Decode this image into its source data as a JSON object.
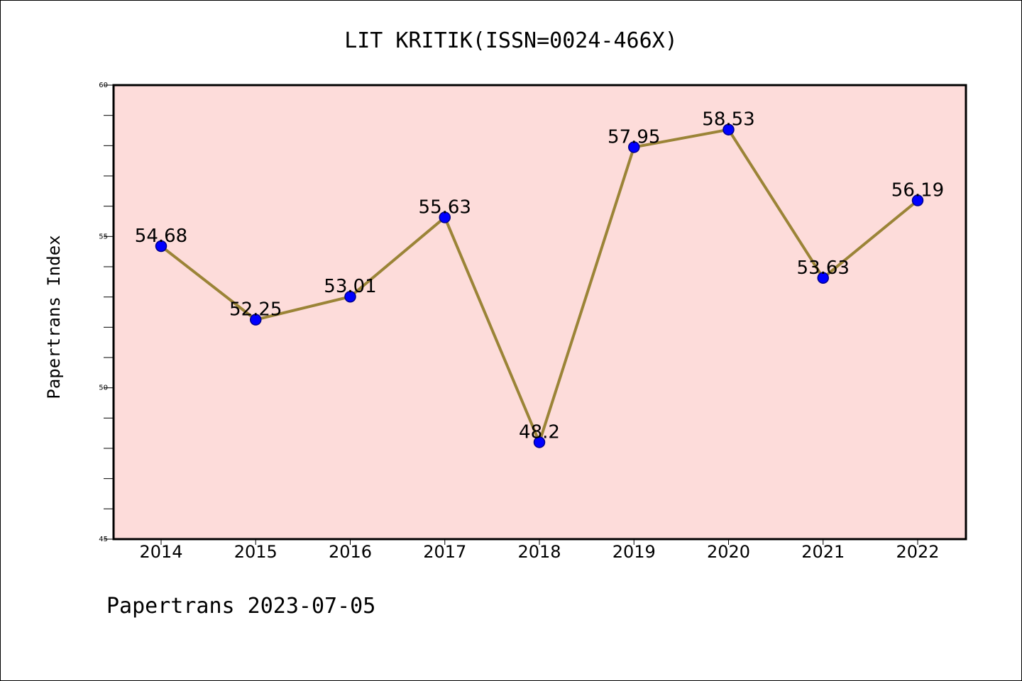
{
  "chart_data": {
    "type": "line",
    "title": "LIT KRITIK(ISSN=0024-466X)",
    "ylabel": "Papertrans Index",
    "xlabel": "",
    "footer": "Papertrans 2023-07-05",
    "categories": [
      "2014",
      "2015",
      "2016",
      "2017",
      "2018",
      "2019",
      "2020",
      "2021",
      "2022"
    ],
    "series": [
      {
        "values": [
          54.68,
          52.25,
          53.01,
          55.63,
          48.2,
          57.95,
          58.53,
          53.63,
          56.19
        ],
        "labels": [
          "54.68",
          "52.25",
          "53.01",
          "55.63",
          "48.2",
          "57.95",
          "58.53",
          "53.63",
          "56.19"
        ]
      }
    ],
    "ylim": [
      45,
      60
    ],
    "yticks": [
      "45",
      "50",
      "55",
      "60"
    ],
    "minor_tick_step": 1,
    "grid": false,
    "colors": {
      "plot_background": "#fddcda",
      "line": "#9b8437",
      "marker_fill": "#0000ff",
      "marker_edge": "#00008b"
    }
  }
}
